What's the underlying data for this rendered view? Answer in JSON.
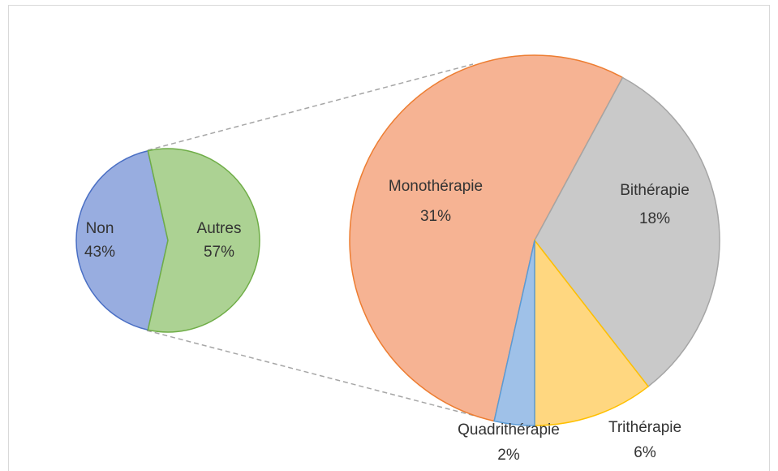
{
  "chart_data": [
    {
      "type": "pie",
      "categories": [
        "Non",
        "Autres"
      ],
      "values": [
        43,
        57
      ],
      "value_labels": [
        "43%",
        "57%"
      ],
      "colors": [
        "#98ade0",
        "#acd293"
      ],
      "edge_colors": [
        "#4a6fc4",
        "#6fad47"
      ]
    },
    {
      "type": "pie",
      "categories": [
        "Monothérapie",
        "Bithérapie",
        "Trithérapie",
        "Quadrithérapie"
      ],
      "values": [
        31,
        18,
        6,
        2
      ],
      "value_labels": [
        "31%",
        "18%",
        "6%",
        "2%"
      ],
      "colors": [
        "#f6b393",
        "#c9c9c9",
        "#ffd780",
        "#9fc1e8"
      ],
      "edge_colors": [
        "#ed7d31",
        "#a5a5a5",
        "#ffc000",
        "#5b9bd5"
      ]
    }
  ]
}
